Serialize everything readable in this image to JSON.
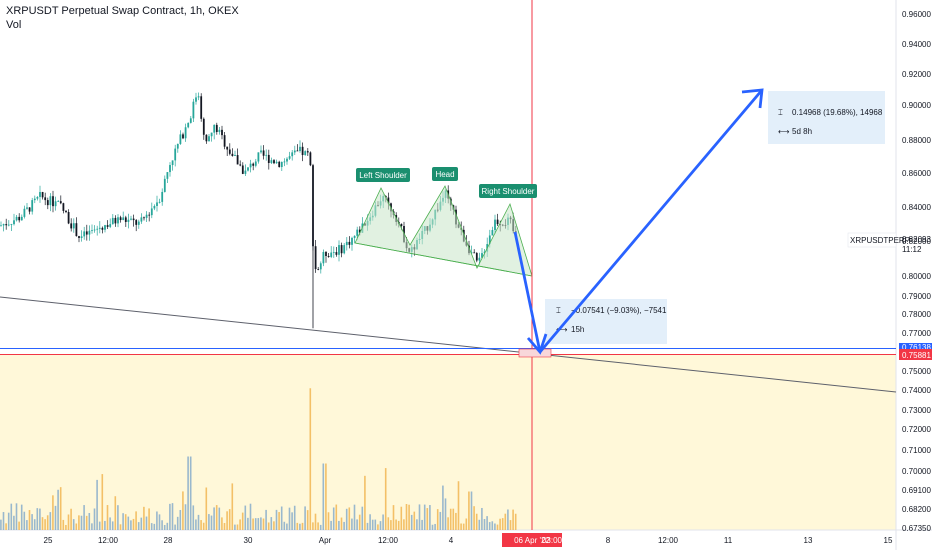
{
  "header": {
    "title": "XRPUSDT Perpetual Swap Contract, 1h, OKEX",
    "volume_label": "Vol"
  },
  "colors": {
    "up": "#26a69a",
    "down": "#131722",
    "vol_up": "#7fa7c9",
    "vol_down": "#f0b24a",
    "pattern_fill": "#c8e6c9",
    "pattern_line": "#4caf50",
    "arrow": "#2962ff",
    "crosshair": "#f23645",
    "trendline": "#5d606b",
    "badge": "#1a8f6f",
    "box": "#e8f1fb",
    "price_line": "#f23645",
    "blue_hline": "#2962ff"
  },
  "chart_data": {
    "type": "candlestick",
    "y_axis": {
      "ticks": [
        "0.96000",
        "0.94000",
        "0.92000",
        "0.90000",
        "0.88000",
        "0.86000",
        "0.84000",
        "0.82000",
        "0.80000",
        "0.79000",
        "0.78000",
        "0.77000",
        "0.75000",
        "0.74000",
        "0.73000",
        "0.72000",
        "0.71000",
        "0.70000",
        "0.69100",
        "0.68200",
        "0.67350"
      ],
      "range": [
        0.672,
        0.965
      ]
    },
    "x_axis": {
      "ticks": [
        "25",
        "12:00",
        "28",
        "30",
        "Apr",
        "12:00",
        "4",
        "12:00",
        "06 Apr '22",
        "03:00",
        "8",
        "12:00",
        "11",
        "13",
        "15"
      ],
      "highlighted": "06 Apr '22"
    },
    "annotations": {
      "left_shoulder": "Left Shoulder",
      "head": "Head",
      "right_shoulder": "Right Shoulder"
    },
    "measure_up": {
      "line1": "0.14968 (19.68%), 14968",
      "line2": "5d 8h"
    },
    "measure_down": {
      "line1": "−0.07541 (−9.03%), −7541",
      "line2": "15h"
    },
    "price_labels": {
      "symbol": "XRPUSDTPERP",
      "price": "0.82093",
      "countdown": "11:12",
      "red_price": "0.75881",
      "blue_price": "0.76138"
    },
    "price_path": [
      [
        0,
        0.829
      ],
      [
        20,
        0.834
      ],
      [
        40,
        0.846
      ],
      [
        60,
        0.841
      ],
      [
        80,
        0.822
      ],
      [
        100,
        0.828
      ],
      [
        120,
        0.833
      ],
      [
        140,
        0.83
      ],
      [
        160,
        0.846
      ],
      [
        170,
        0.866
      ],
      [
        180,
        0.88
      ],
      [
        190,
        0.893
      ],
      [
        198,
        0.91
      ],
      [
        205,
        0.876
      ],
      [
        215,
        0.888
      ],
      [
        230,
        0.873
      ],
      [
        245,
        0.86
      ],
      [
        260,
        0.871
      ],
      [
        280,
        0.866
      ],
      [
        300,
        0.873
      ],
      [
        310,
        0.87
      ],
      [
        313,
        0.82
      ],
      [
        316,
        0.802
      ],
      [
        325,
        0.813
      ],
      [
        340,
        0.815
      ],
      [
        355,
        0.823
      ],
      [
        370,
        0.835
      ],
      [
        382,
        0.846
      ],
      [
        395,
        0.836
      ],
      [
        410,
        0.813
      ],
      [
        425,
        0.826
      ],
      [
        445,
        0.848
      ],
      [
        460,
        0.826
      ],
      [
        478,
        0.806
      ],
      [
        495,
        0.832
      ],
      [
        510,
        0.831
      ],
      [
        517,
        0.82
      ]
    ],
    "volume": {
      "baseline_pct": 0.02,
      "spikes": [
        [
          190,
          0.42
        ],
        [
          310,
          0.81
        ],
        [
          325,
          0.38
        ],
        [
          470,
          0.22
        ]
      ]
    }
  }
}
